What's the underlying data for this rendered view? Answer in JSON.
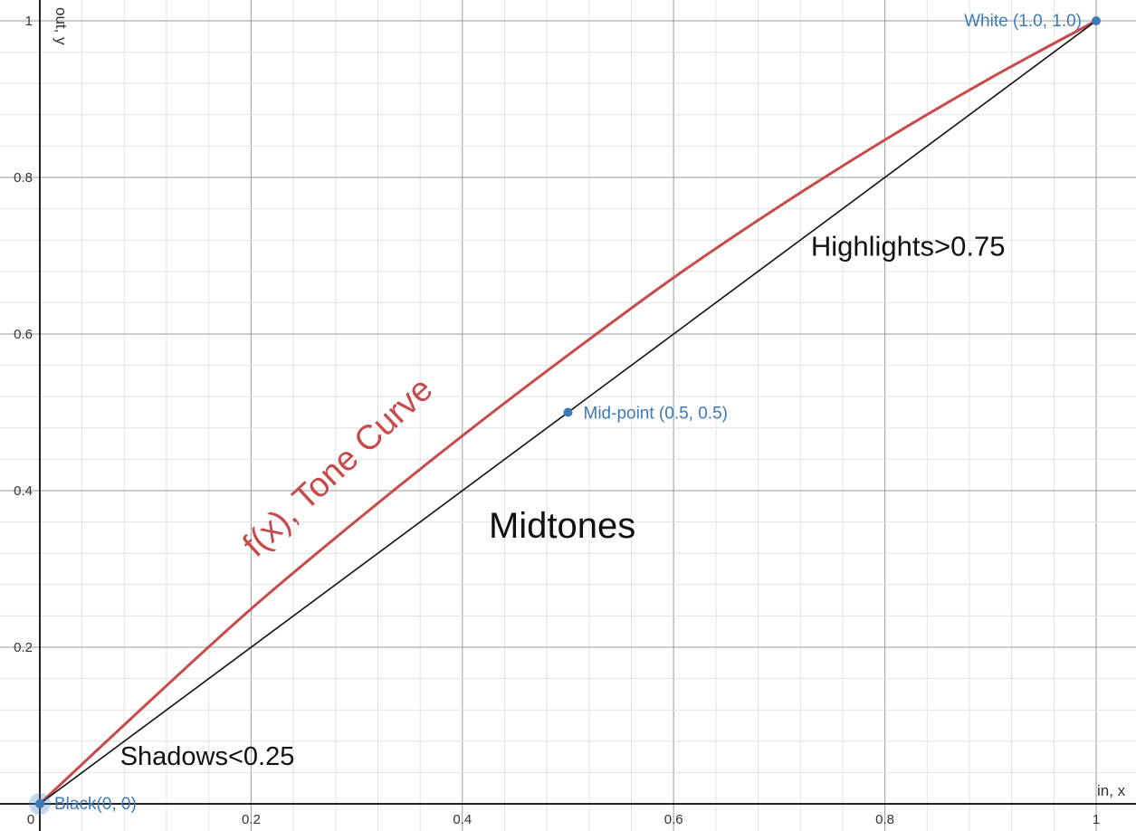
{
  "chart_data": {
    "type": "line",
    "xlabel": "in, x",
    "ylabel": "out, y",
    "xlim": [
      0,
      1
    ],
    "ylim": [
      0,
      1
    ],
    "grid": true,
    "x_ticks": [
      "0",
      "0.2",
      "0.4",
      "0.6",
      "0.8",
      "1"
    ],
    "y_ticks": [
      "0.2",
      "0.4",
      "0.6",
      "0.8",
      "1"
    ],
    "series": [
      {
        "name": "f(x), Tone Curve",
        "color": "#c84a4a",
        "x": [
          0,
          0.1,
          0.2,
          0.3,
          0.4,
          0.5,
          0.6,
          0.7,
          0.8,
          0.9,
          1.0
        ],
        "y": [
          0,
          0.126,
          0.249,
          0.362,
          0.47,
          0.573,
          0.672,
          0.763,
          0.848,
          0.927,
          1.0
        ]
      },
      {
        "color": "#111111",
        "x": [
          0,
          1
        ],
        "y": [
          0,
          1
        ]
      }
    ],
    "points": [
      {
        "label": "Black(0, 0)",
        "x": 0,
        "y": 0,
        "color": "#3d7ab8"
      },
      {
        "label": "Mid-point (0.5, 0.5)",
        "x": 0.5,
        "y": 0.5,
        "color": "#3d7ab8"
      },
      {
        "label": "White (1.0, 1.0)",
        "x": 1.0,
        "y": 1.0,
        "color": "#3d7ab8"
      }
    ],
    "annotations": [
      {
        "text": "Shadows<0.25",
        "x": 0.076,
        "y": 0.05
      },
      {
        "text": "Midtones",
        "x": 0.425,
        "y": 0.34
      },
      {
        "text": "Highlights>0.75",
        "x": 0.73,
        "y": 0.7
      }
    ],
    "curve_label": "f(x), Tone Curve"
  }
}
